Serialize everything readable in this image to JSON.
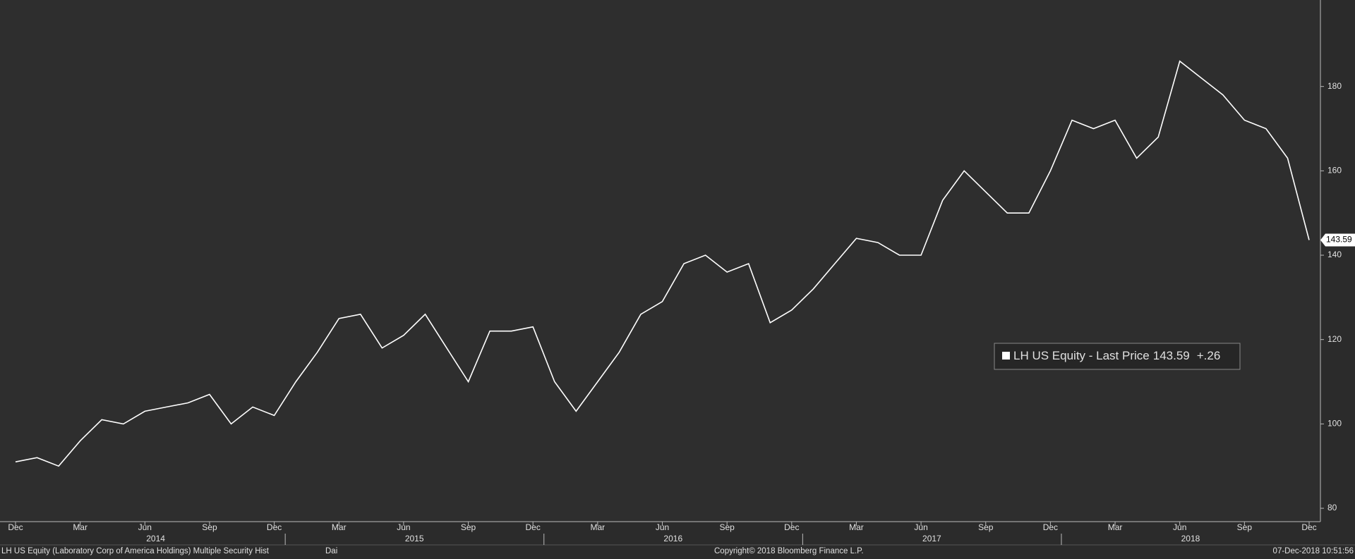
{
  "chart_data": {
    "type": "line",
    "categories": [
      "Dec",
      null,
      null,
      "Mar",
      null,
      null,
      "Jun",
      null,
      null,
      "Sep",
      null,
      null,
      "Dec",
      null,
      null,
      "Mar",
      null,
      null,
      "Jun",
      null,
      null,
      "Sep",
      null,
      null,
      "Dec",
      null,
      null,
      "Mar",
      null,
      null,
      "Jun",
      null,
      null,
      "Sep",
      null,
      null,
      "Dec",
      null,
      null,
      "Mar",
      null,
      null,
      "Jun",
      null,
      null,
      "Sep",
      null,
      null,
      "Dec",
      null,
      null,
      "Mar",
      null,
      null,
      "Jun",
      null,
      null,
      "Sep",
      null,
      null,
      "Dec"
    ],
    "years": [
      "2014",
      "2015",
      "2016",
      "2017",
      "2018"
    ],
    "series": [
      {
        "name": "LH US Equity - Last Price",
        "color": "#ffffff",
        "values": [
          91,
          92,
          90,
          96,
          101,
          100,
          103,
          104,
          105,
          107,
          100,
          104,
          102,
          110,
          117,
          125,
          126,
          118,
          121,
          126,
          118,
          110,
          122,
          122,
          123,
          110,
          103,
          110,
          117,
          126,
          129,
          138,
          140,
          136,
          138,
          124,
          127,
          132,
          138,
          144,
          143,
          140,
          140,
          153,
          160,
          155,
          150,
          150,
          160,
          172,
          170,
          172,
          163,
          168,
          186,
          182,
          178,
          172,
          170,
          163,
          143.59
        ]
      }
    ],
    "change": "+.26",
    "ylim": [
      77,
      200
    ],
    "yticks": [
      80,
      100,
      120,
      140,
      160,
      180
    ],
    "footer": {
      "source": "LH US Equity (Laboratory Corp of America Holdings) Multiple Security Hist",
      "frequency": "Dai",
      "copyright": "Copyright© 2018 Bloomberg Finance L.P.",
      "timestamp": "07-Dec-2018 10:51:56"
    }
  }
}
